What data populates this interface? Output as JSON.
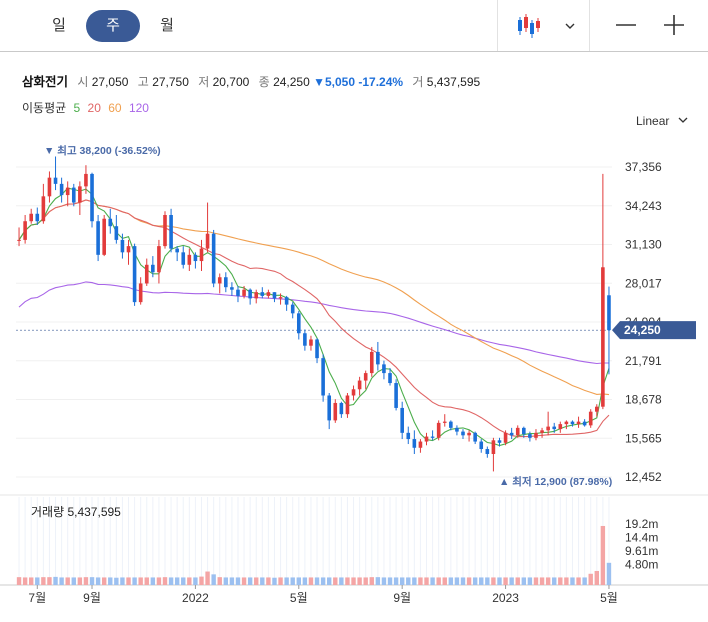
{
  "tabs": [
    {
      "label": "일",
      "active": false
    },
    {
      "label": "주",
      "active": true
    },
    {
      "label": "월",
      "active": false
    }
  ],
  "toolbar": {
    "chart_type_icon": "candlestick-icon",
    "dropdown_icon": "chevron-down-icon",
    "zoom_out_icon": "minus-icon",
    "zoom_in_icon": "plus-icon"
  },
  "info": {
    "name": "삼화전기",
    "open_label": "시",
    "open": "27,050",
    "high_label": "고",
    "high": "27,750",
    "low_label": "저",
    "low": "20,700",
    "close_label": "종",
    "close": "24,250",
    "change": "▼5,050",
    "change_pct": "-17.24%",
    "volume_label": "거",
    "volume": "5,437,595"
  },
  "ma": {
    "label": "이동평균",
    "periods": [
      "5",
      "20",
      "60",
      "120"
    ],
    "colors": [
      "#4cae4c",
      "#e06666",
      "#f0a050",
      "#a865e8"
    ]
  },
  "scale": {
    "label": "Linear"
  },
  "annotations": {
    "high": "▼ 최고 38,200 (-36.52%)",
    "low": "▲ 최저 12,900 (87.98%)"
  },
  "volume_title": "거래량 5,437,595",
  "colors": {
    "up": "#e23b3b",
    "down": "#1a6fd8",
    "accent": "#3a5a96"
  },
  "chart_data": {
    "type": "candlestick",
    "price_ticks": [
      "37,356",
      "34,243",
      "31,130",
      "28,017",
      "24,904",
      "21,791",
      "18,678",
      "15,565",
      "12,452"
    ],
    "price_tick_values": [
      37356,
      34243,
      31130,
      28017,
      24904,
      21791,
      18678,
      15565,
      12452
    ],
    "current_price_label": "24,250",
    "current_price": 24250,
    "x_labels": [
      "7월",
      "9월",
      "2022",
      "5월",
      "9월",
      "2023",
      "5월"
    ],
    "x_label_index": [
      3,
      12,
      29,
      46,
      63,
      80,
      97
    ],
    "volume_ticks": [
      "19.2m",
      "14.4m",
      "9.61m",
      "4.80m"
    ],
    "volume_tick_values": [
      19.2,
      14.4,
      9.61,
      4.8
    ],
    "ohlc": [
      [
        31500,
        32500,
        31000,
        31500
      ],
      [
        31500,
        33500,
        31200,
        33000
      ],
      [
        33000,
        34000,
        32800,
        33600
      ],
      [
        33600,
        34100,
        32700,
        33000
      ],
      [
        33000,
        36000,
        32800,
        35000
      ],
      [
        35000,
        37000,
        34500,
        36500
      ],
      [
        36500,
        38200,
        35500,
        36000
      ],
      [
        36000,
        36500,
        34500,
        35100
      ],
      [
        35100,
        36200,
        34200,
        35700
      ],
      [
        35700,
        36000,
        34200,
        34500
      ],
      [
        34500,
        36200,
        33500,
        35800
      ],
      [
        35800,
        37500,
        35200,
        36800
      ],
      [
        36800,
        36900,
        32500,
        33000
      ],
      [
        33000,
        33500,
        29800,
        30300
      ],
      [
        30300,
        33500,
        30200,
        33200
      ],
      [
        33200,
        34000,
        32000,
        32600
      ],
      [
        32600,
        33500,
        31200,
        31500
      ],
      [
        31500,
        32000,
        30000,
        30500
      ],
      [
        30500,
        31500,
        29500,
        31000
      ],
      [
        31000,
        31200,
        26200,
        26500
      ],
      [
        26500,
        28500,
        26300,
        28000
      ],
      [
        28000,
        30000,
        27800,
        29500
      ],
      [
        29500,
        30200,
        28500,
        28900
      ],
      [
        28900,
        31500,
        28000,
        31000
      ],
      [
        31000,
        33800,
        30800,
        33500
      ],
      [
        33500,
        34000,
        30500,
        30800
      ],
      [
        30800,
        31000,
        29800,
        30500
      ],
      [
        30500,
        31000,
        29200,
        29500
      ],
      [
        29500,
        30800,
        29000,
        30300
      ],
      [
        30300,
        30500,
        29200,
        29800
      ],
      [
        29800,
        31500,
        29000,
        30800
      ],
      [
        30800,
        34500,
        30500,
        32000
      ],
      [
        32000,
        32300,
        27700,
        28000
      ],
      [
        28000,
        28800,
        27200,
        28500
      ],
      [
        28500,
        28900,
        27300,
        27700
      ],
      [
        27700,
        28100,
        27000,
        27500
      ],
      [
        27500,
        27800,
        26500,
        27000
      ],
      [
        27000,
        27800,
        26800,
        27500
      ],
      [
        27500,
        27600,
        26300,
        26800
      ],
      [
        26800,
        27500,
        26400,
        27300
      ],
      [
        27300,
        27700,
        26800,
        27000
      ],
      [
        27000,
        27500,
        26800,
        27300
      ],
      [
        27300,
        27300,
        26500,
        26800
      ],
      [
        26800,
        27200,
        26300,
        26900
      ],
      [
        26900,
        27000,
        25800,
        26300
      ],
      [
        26300,
        26500,
        25200,
        25600
      ],
      [
        25600,
        25800,
        23500,
        24000
      ],
      [
        24000,
        24300,
        22600,
        23000
      ],
      [
        23000,
        23800,
        22600,
        23500
      ],
      [
        23500,
        23600,
        21600,
        22000
      ],
      [
        22000,
        22300,
        18500,
        19000
      ],
      [
        19000,
        19200,
        16300,
        17000
      ],
      [
        17000,
        18700,
        16800,
        18400
      ],
      [
        18400,
        18500,
        17200,
        17500
      ],
      [
        17500,
        19200,
        17200,
        19000
      ],
      [
        19000,
        19800,
        18600,
        19500
      ],
      [
        19500,
        20500,
        19000,
        20200
      ],
      [
        20200,
        21000,
        19500,
        20800
      ],
      [
        20800,
        22900,
        20500,
        22500
      ],
      [
        22500,
        23300,
        21000,
        21500
      ],
      [
        21500,
        21800,
        20300,
        20800
      ],
      [
        20800,
        21200,
        19800,
        20000
      ],
      [
        20000,
        20300,
        17800,
        18000
      ],
      [
        18000,
        18500,
        15500,
        16000
      ],
      [
        16000,
        16500,
        15100,
        15500
      ],
      [
        15500,
        16200,
        14300,
        14800
      ],
      [
        14800,
        15500,
        14400,
        15300
      ],
      [
        15300,
        16000,
        15000,
        15700
      ],
      [
        15700,
        16200,
        15400,
        15600
      ],
      [
        15600,
        17000,
        15400,
        16800
      ],
      [
        16800,
        17500,
        16500,
        16900
      ],
      [
        16900,
        17000,
        16200,
        16400
      ],
      [
        16400,
        16600,
        15800,
        16100
      ],
      [
        16100,
        16300,
        15500,
        15800
      ],
      [
        15800,
        16200,
        15300,
        16000
      ],
      [
        16000,
        16100,
        15100,
        15300
      ],
      [
        15300,
        15500,
        14400,
        14700
      ],
      [
        14700,
        14900,
        14000,
        14300
      ],
      [
        14300,
        15600,
        12900,
        15400
      ],
      [
        15400,
        15600,
        14900,
        15200
      ],
      [
        15200,
        16200,
        15000,
        16000
      ],
      [
        16000,
        16400,
        15500,
        15800
      ],
      [
        15800,
        16600,
        15600,
        16400
      ],
      [
        16400,
        16500,
        15600,
        15900
      ],
      [
        15900,
        16100,
        15300,
        15600
      ],
      [
        15600,
        16300,
        15400,
        16000
      ],
      [
        16000,
        16400,
        15600,
        16200
      ],
      [
        16200,
        17700,
        15800,
        16500
      ],
      [
        16500,
        16800,
        16000,
        16300
      ],
      [
        16300,
        16900,
        16000,
        16700
      ],
      [
        16700,
        17000,
        16300,
        16900
      ],
      [
        16900,
        17000,
        16500,
        16700
      ],
      [
        16700,
        17300,
        16400,
        16900
      ],
      [
        16900,
        17100,
        16500,
        16600
      ],
      [
        16600,
        17900,
        16400,
        17700
      ],
      [
        17700,
        18300,
        17300,
        18100
      ],
      [
        18100,
        36800,
        17900,
        29300
      ],
      [
        27050,
        27750,
        20700,
        24250
      ]
    ],
    "volume": [
      0.3,
      0.2,
      0.2,
      0.2,
      0.3,
      0.3,
      0.4,
      0.2,
      0.2,
      0.2,
      0.2,
      0.3,
      0.3,
      0.2,
      0.2,
      0.2,
      0.1,
      0.2,
      0.2,
      0.2,
      0.2,
      0.2,
      0.2,
      0.2,
      0.3,
      0.2,
      0.2,
      0.2,
      0.2,
      0.2,
      0.5,
      2.3,
      1.3,
      0.3,
      0.2,
      0.2,
      0.2,
      0.2,
      0.2,
      0.2,
      0.2,
      0.2,
      0.1,
      0.2,
      0.2,
      0.2,
      0.2,
      0.2,
      0.2,
      0.2,
      0.2,
      0.2,
      0.2,
      0.2,
      0.2,
      0.2,
      0.2,
      0.2,
      0.3,
      0.3,
      0.2,
      0.2,
      0.2,
      0.2,
      0.2,
      0.2,
      0.2,
      0.2,
      0.2,
      0.2,
      0.2,
      0.2,
      0.2,
      0.2,
      0.2,
      0.2,
      0.2,
      0.2,
      0.2,
      0.2,
      0.2,
      0.2,
      0.2,
      0.2,
      0.2,
      0.2,
      0.2,
      0.2,
      0.2,
      0.2,
      0.2,
      0.2,
      0.2,
      0.2,
      1.5,
      2.5,
      18.5,
      5.4
    ]
  }
}
